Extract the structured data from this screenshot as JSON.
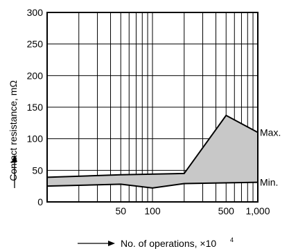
{
  "chart_data": {
    "type": "area",
    "title": "",
    "xlabel": "No. of operations, ×10",
    "xlabel_exponent": "4",
    "ylabel": "Contact resistance, mΩ",
    "x_scale": "log",
    "xlim": [
      10,
      1000
    ],
    "ylim": [
      0,
      300
    ],
    "y_ticks": [
      0,
      50,
      100,
      150,
      200,
      250,
      300
    ],
    "x_tick_labels": [
      {
        "value": 50,
        "label": "50"
      },
      {
        "value": 100,
        "label": "100"
      },
      {
        "value": 500,
        "label": "500"
      },
      {
        "value": 1000,
        "label": "1,000"
      }
    ],
    "x_grid": [
      20,
      30,
      40,
      50,
      60,
      70,
      80,
      90,
      100,
      200,
      300,
      400,
      500,
      600,
      700,
      800,
      900
    ],
    "grid": true,
    "series": [
      {
        "name": "Max.",
        "x": [
          10,
          50,
          200,
          500,
          1000
        ],
        "y": [
          39,
          43,
          45,
          137,
          110
        ]
      },
      {
        "name": "Min.",
        "x": [
          10,
          50,
          100,
          200,
          1000
        ],
        "y": [
          25,
          28,
          22,
          29,
          31
        ]
      }
    ],
    "fill_between": true,
    "fill_color": "#c8c8c8"
  }
}
